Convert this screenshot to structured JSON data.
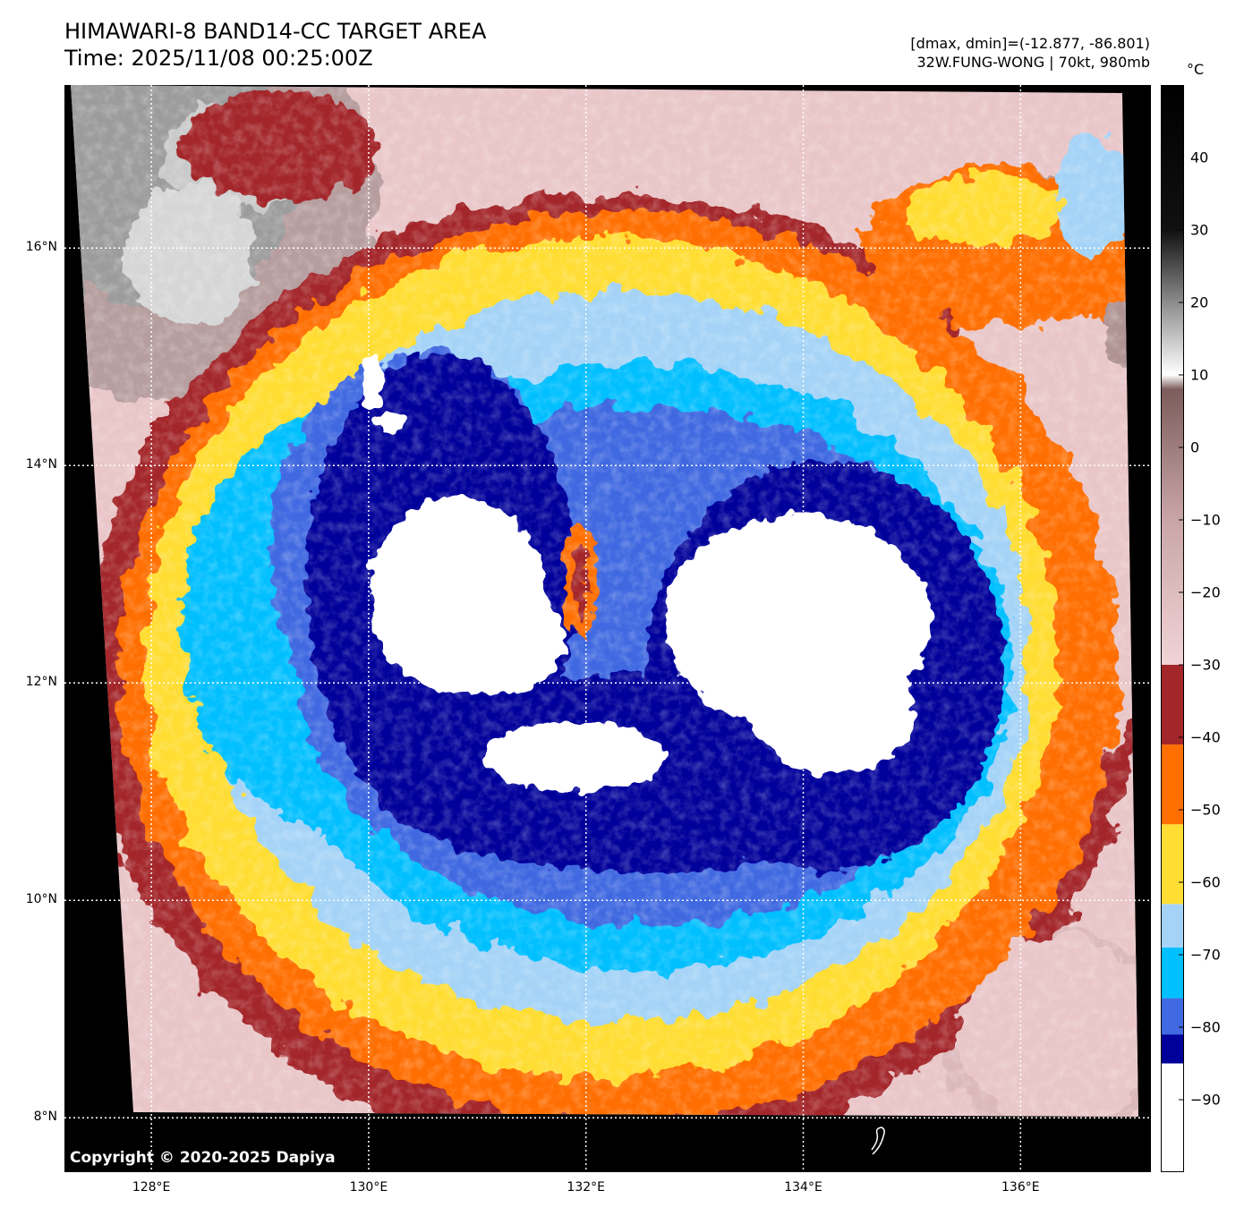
{
  "header": {
    "title_line1": "HIMAWARI-8 BAND14-CC TARGET AREA",
    "title_line2": "Time: 2025/11/08 00:25:00Z",
    "stats_line1": "[dmax, dmin]=(-12.877, -86.801)",
    "stats_line2": "32W.FUNG-WONG | 70kt, 980mb"
  },
  "map": {
    "lat_range": [
      7.5,
      17.5
    ],
    "lon_range": [
      127.2,
      137.2
    ],
    "lat_ticks": [
      {
        "value": 16,
        "label": "16°N"
      },
      {
        "value": 14,
        "label": "14°N"
      },
      {
        "value": 12,
        "label": "12°N"
      },
      {
        "value": 10,
        "label": "10°N"
      },
      {
        "value": 8,
        "label": "8°N"
      }
    ],
    "lon_ticks": [
      {
        "value": 128,
        "label": "128°E"
      },
      {
        "value": 130,
        "label": "130°E"
      },
      {
        "value": 132,
        "label": "132°E"
      },
      {
        "value": 134,
        "label": "134°E"
      },
      {
        "value": 136,
        "label": "136°E"
      }
    ],
    "gridlines": true,
    "storm_center": {
      "lat": 12.9,
      "lon": 131.95
    },
    "copyright": "Copyright © 2020-2025 Dapiya"
  },
  "colorbar": {
    "unit": "°C",
    "range": [
      -100,
      50
    ],
    "ticks": [
      "40",
      "30",
      "20",
      "10",
      "0",
      "−10",
      "−20",
      "−30",
      "−40",
      "−50",
      "−60",
      "−70",
      "−80",
      "−90"
    ],
    "tick_values": [
      40,
      30,
      20,
      10,
      0,
      -10,
      -20,
      -30,
      -40,
      -50,
      -60,
      -70,
      -80,
      -90
    ],
    "bands": [
      {
        "from": -100,
        "to": -85,
        "color": "#ffffff"
      },
      {
        "from": -85,
        "to": -81,
        "color": "#00009a"
      },
      {
        "from": -81,
        "to": -76,
        "color": "#4169e1"
      },
      {
        "from": -76,
        "to": -69,
        "color": "#00bfff"
      },
      {
        "from": -69,
        "to": -63,
        "color": "#a4d3f7"
      },
      {
        "from": -63,
        "to": -52,
        "color": "#ffdd33"
      },
      {
        "from": -52,
        "to": -41,
        "color": "#ff6e00"
      },
      {
        "from": -41,
        "to": -30,
        "color": "#a3262a"
      }
    ],
    "gradient_stops": [
      {
        "t": -30,
        "color": "#f2d4d6"
      },
      {
        "t": -10,
        "color": "#c9a5a7"
      },
      {
        "t": 8,
        "color": "#7d5c5c"
      },
      {
        "t": 10,
        "color": "#ffffff"
      },
      {
        "t": 20,
        "color": "#8c8c8c"
      },
      {
        "t": 30,
        "color": "#101010"
      },
      {
        "t": 50,
        "color": "#000000"
      }
    ]
  }
}
